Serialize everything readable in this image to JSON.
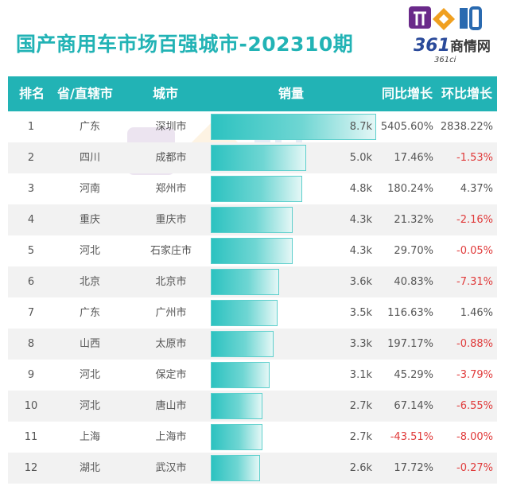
{
  "title": "国产商用车市场百强城市-202310期",
  "logo": {
    "brand": "商情网",
    "num": "361",
    "sub": "361ci"
  },
  "columns": {
    "rank": "排名",
    "province": "省/直辖市",
    "city": "城市",
    "sales": "销量",
    "yoy": "同比增长",
    "mom": "环比增长"
  },
  "colors": {
    "accent": "#22b3b5",
    "negative": "#e03a3a",
    "bar": "#2cc2c0"
  },
  "chart_data": {
    "type": "bar",
    "title": "国产商用车市场百强城市-202310期",
    "unit": "k",
    "rows": [
      {
        "rank": "1",
        "province": "广东",
        "city": "深圳市",
        "value": 8.7,
        "label": "8.7k",
        "yoy": "5405.60%",
        "mom": "2838.22%"
      },
      {
        "rank": "2",
        "province": "四川",
        "city": "成都市",
        "value": 5.0,
        "label": "5.0k",
        "yoy": "17.46%",
        "mom": "-1.53%"
      },
      {
        "rank": "3",
        "province": "河南",
        "city": "郑州市",
        "value": 4.8,
        "label": "4.8k",
        "yoy": "180.24%",
        "mom": "4.37%"
      },
      {
        "rank": "4",
        "province": "重庆",
        "city": "重庆市",
        "value": 4.3,
        "label": "4.3k",
        "yoy": "21.32%",
        "mom": "-2.16%"
      },
      {
        "rank": "5",
        "province": "河北",
        "city": "石家庄市",
        "value": 4.3,
        "label": "4.3k",
        "yoy": "29.70%",
        "mom": "-0.05%"
      },
      {
        "rank": "6",
        "province": "北京",
        "city": "北京市",
        "value": 3.6,
        "label": "3.6k",
        "yoy": "40.83%",
        "mom": "-7.31%"
      },
      {
        "rank": "7",
        "province": "广东",
        "city": "广州市",
        "value": 3.5,
        "label": "3.5k",
        "yoy": "116.63%",
        "mom": "1.46%"
      },
      {
        "rank": "8",
        "province": "山西",
        "city": "太原市",
        "value": 3.3,
        "label": "3.3k",
        "yoy": "197.17%",
        "mom": "-0.88%"
      },
      {
        "rank": "9",
        "province": "河北",
        "city": "保定市",
        "value": 3.1,
        "label": "3.1k",
        "yoy": "45.29%",
        "mom": "-3.79%"
      },
      {
        "rank": "10",
        "province": "河北",
        "city": "唐山市",
        "value": 2.7,
        "label": "2.7k",
        "yoy": "67.14%",
        "mom": "-6.55%"
      },
      {
        "rank": "11",
        "province": "上海",
        "city": "上海市",
        "value": 2.7,
        "label": "2.7k",
        "yoy": "-43.51%",
        "mom": "-8.00%"
      },
      {
        "rank": "12",
        "province": "湖北",
        "city": "武汉市",
        "value": 2.6,
        "label": "2.6k",
        "yoy": "17.72%",
        "mom": "-0.27%"
      }
    ]
  }
}
